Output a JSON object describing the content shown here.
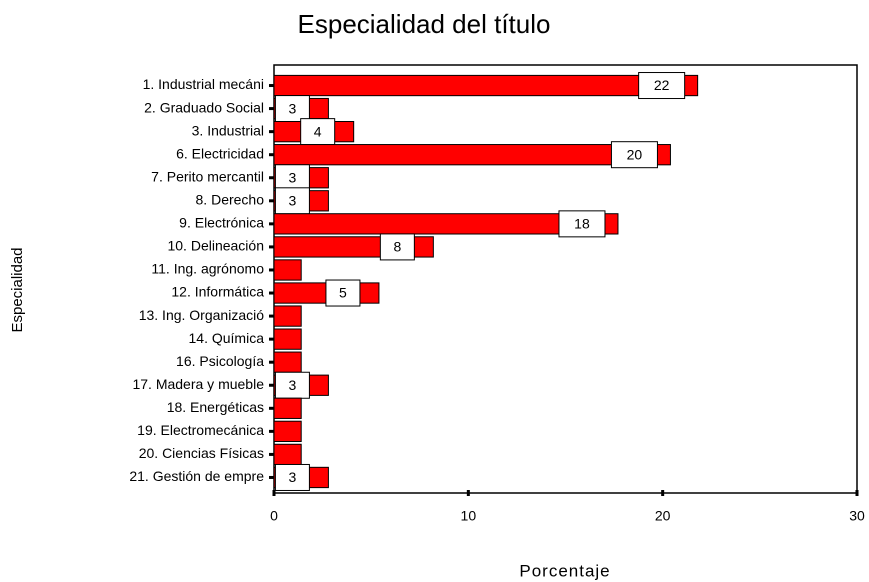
{
  "chart_data": {
    "type": "barh",
    "title": "Especialidad del título",
    "xlabel": "Porcentaje",
    "ylabel": "Especialidad",
    "categories": [
      "1. Industrial mecáni",
      "2. Graduado Social",
      "3. Industrial",
      "6. Electricidad",
      "7. Perito mercantil",
      "8. Derecho",
      "9. Electrónica",
      "10. Delineación",
      "11. Ing. agrónomo",
      "12. Informática",
      "13. Ing. Organizació",
      "14. Química",
      "16. Psicología",
      "17. Madera y mueble",
      "18. Energéticas",
      "19. Electromecánica",
      "20. Ciencias Físicas",
      "21. Gestión de empre"
    ],
    "values": [
      21.8,
      2.8,
      4.1,
      20.4,
      2.8,
      2.8,
      17.7,
      8.2,
      1.4,
      5.4,
      1.4,
      1.4,
      1.4,
      2.8,
      1.4,
      1.4,
      1.4,
      2.8
    ],
    "value_labels": [
      "22",
      "3",
      "4",
      "20",
      "3",
      "3",
      "18",
      "8",
      null,
      "5",
      null,
      null,
      null,
      "3",
      null,
      null,
      null,
      "3"
    ],
    "color": "#ff0000",
    "xlim": [
      0,
      30
    ],
    "xticks": [
      0,
      10,
      20,
      30
    ]
  }
}
